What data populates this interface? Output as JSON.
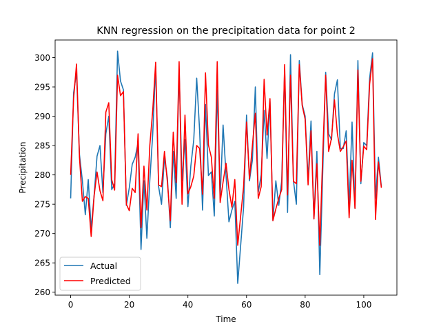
{
  "chart_data": {
    "type": "line",
    "title": "KNN regression on the precipitation data for point 2",
    "xlabel": "Time",
    "ylabel": "Precipitation",
    "xlim": [
      -5.3,
      111.3
    ],
    "ylim": [
      259.5,
      303.0
    ],
    "xticks": [
      0,
      20,
      40,
      60,
      80,
      100
    ],
    "yticks": [
      260,
      265,
      270,
      275,
      280,
      285,
      290,
      295,
      300
    ],
    "grid": false,
    "legend": "lower-left",
    "series": [
      {
        "name": "Actual",
        "color": "#1f77b4",
        "values": [
          276.0,
          294.0,
          297.5,
          283.5,
          279.0,
          273.2,
          279.2,
          270.8,
          276.5,
          283.2,
          285.0,
          277.0,
          287.0,
          290.0,
          277.5,
          278.5,
          301.1,
          296.0,
          294.5,
          274.8,
          277.8,
          281.8,
          283.0,
          285.5,
          267.3,
          279.0,
          269.2,
          279.0,
          287.0,
          298.5,
          278.0,
          275.0,
          283.0,
          279.5,
          271.0,
          284.0,
          276.0,
          298.0,
          279.0,
          286.0,
          274.6,
          281.5,
          286.0,
          296.5,
          287.5,
          274.0,
          292.0,
          279.9,
          280.5,
          273.0,
          294.5,
          276.0,
          288.5,
          280.0,
          272.0,
          274.0,
          275.5,
          261.5,
          268.0,
          274.5,
          290.2,
          279.0,
          282.5,
          295.0,
          277.0,
          280.0,
          291.0,
          282.8,
          292.5,
          272.2,
          279.0,
          274.8,
          279.0,
          298.0,
          273.6,
          300.5,
          279.0,
          275.0,
          299.5,
          292.0,
          290.0,
          279.2,
          289.2,
          272.5,
          284.0,
          263.0,
          280.5,
          297.5,
          287.0,
          286.0,
          293.8,
          296.2,
          284.5,
          284.5,
          287.5,
          274.8,
          289.0,
          274.3,
          299.5,
          278.5,
          285.5,
          285.0,
          296.5,
          300.8,
          276.0,
          283.0,
          278.0
        ]
      },
      {
        "name": "Predicted",
        "color": "#ff0000",
        "values": [
          280.0,
          293.0,
          298.9,
          283.0,
          275.5,
          276.3,
          276.0,
          269.5,
          276.4,
          280.5,
          277.3,
          275.6,
          290.7,
          292.3,
          279.2,
          277.4,
          297.0,
          293.5,
          294.2,
          275.0,
          273.9,
          277.7,
          277.0,
          287.0,
          271.0,
          281.5,
          274.0,
          285.0,
          291.0,
          299.2,
          278.3,
          278.0,
          284.0,
          278.8,
          272.2,
          287.3,
          278.7,
          299.3,
          275.0,
          290.2,
          276.8,
          278.0,
          279.8,
          285.0,
          284.5,
          276.7,
          297.4,
          285.1,
          283.0,
          276.0,
          299.3,
          275.3,
          278.8,
          282.0,
          277.5,
          274.5,
          279.2,
          268.0,
          273.0,
          278.0,
          289.0,
          279.3,
          285.0,
          290.5,
          276.0,
          278.0,
          296.3,
          286.8,
          293.0,
          272.2,
          274.2,
          276.0,
          277.5,
          298.8,
          276.6,
          297.0,
          278.9,
          278.5,
          298.8,
          291.8,
          289.5,
          278.3,
          287.5,
          272.5,
          281.9,
          268.0,
          283.5,
          297.0,
          284.0,
          286.3,
          292.8,
          287.0,
          284.0,
          284.8,
          285.8,
          272.7,
          282.5,
          274.3,
          297.9,
          278.9,
          284.9,
          284.3,
          295.5,
          299.8,
          272.4,
          282.2,
          277.8
        ]
      }
    ]
  }
}
